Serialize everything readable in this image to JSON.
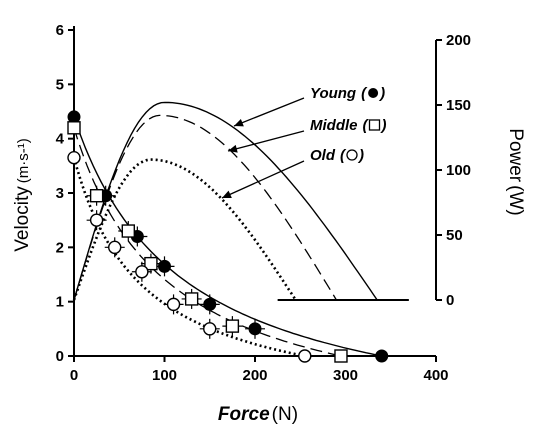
{
  "chart_data": {
    "type": "scatter",
    "x_axis": {
      "label_main": "Force",
      "label_unit": "(N)",
      "range": [
        0,
        400
      ],
      "ticks": [
        "0",
        "100",
        "200",
        "300",
        "400"
      ]
    },
    "y_left": {
      "label_main": "Velocity",
      "label_unit": "(m·s-¹)",
      "range": [
        0,
        6
      ],
      "ticks": [
        "0",
        "1",
        "2",
        "3",
        "4",
        "5",
        "6"
      ]
    },
    "y_right": {
      "label_main": "Power",
      "label_unit": "(W)",
      "range": [
        0,
        200
      ],
      "ticks": [
        "0",
        "50",
        "100",
        "150",
        "200"
      ]
    },
    "series": [
      {
        "name": "Young",
        "marker": "filled-circle",
        "velocity_points": [
          {
            "x": 0,
            "y": 4.4
          },
          {
            "x": 35,
            "y": 2.95
          },
          {
            "x": 70,
            "y": 2.2
          },
          {
            "x": 100,
            "y": 1.65
          },
          {
            "x": 150,
            "y": 0.95
          },
          {
            "x": 200,
            "y": 0.5
          },
          {
            "x": 340,
            "y": 0.0
          }
        ],
        "velocity_curve": {
          "f0": 340,
          "v0": 4.4,
          "curvature": 0.35
        },
        "power_curve": {
          "peak_force": 100,
          "peak_power": 152,
          "end_force": 335
        },
        "line_style": "solid"
      },
      {
        "name": "Middle",
        "marker": "open-square",
        "velocity_points": [
          {
            "x": 0,
            "y": 4.2
          },
          {
            "x": 25,
            "y": 2.95
          },
          {
            "x": 60,
            "y": 2.3
          },
          {
            "x": 85,
            "y": 1.7
          },
          {
            "x": 130,
            "y": 1.05
          },
          {
            "x": 175,
            "y": 0.55
          },
          {
            "x": 295,
            "y": 0.0
          }
        ],
        "velocity_curve": {
          "f0": 295,
          "v0": 4.2,
          "curvature": 0.35
        },
        "power_curve": {
          "peak_force": 95,
          "peak_power": 142,
          "end_force": 290
        },
        "line_style": "dashed"
      },
      {
        "name": "Old",
        "marker": "open-circle",
        "velocity_points": [
          {
            "x": 0,
            "y": 3.65
          },
          {
            "x": 25,
            "y": 2.5
          },
          {
            "x": 45,
            "y": 2.0
          },
          {
            "x": 75,
            "y": 1.55
          },
          {
            "x": 110,
            "y": 0.95
          },
          {
            "x": 150,
            "y": 0.5
          },
          {
            "x": 255,
            "y": 0.0
          }
        ],
        "velocity_curve": {
          "f0": 255,
          "v0": 3.65,
          "curvature": 0.3
        },
        "power_curve": {
          "peak_force": 85,
          "peak_power": 108,
          "end_force": 245
        },
        "line_style": "dotted"
      }
    ],
    "power_baseline_range": [
      225,
      370
    ],
    "legend_placement": "top-right",
    "grid": false
  }
}
